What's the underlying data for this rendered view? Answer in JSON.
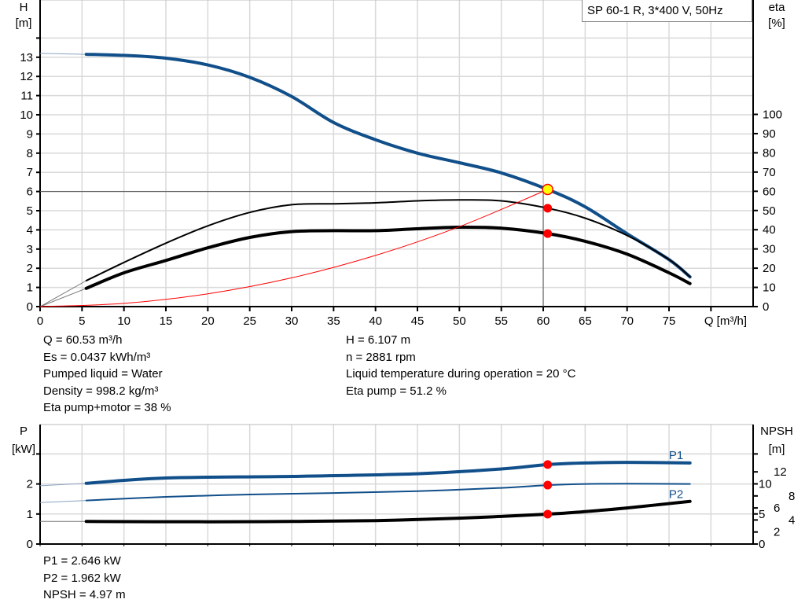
{
  "chart_data": [
    {
      "type": "line",
      "title": "SP 60-1 R, 3*400 V, 50Hz",
      "xlabel": "Q [m³/h]",
      "xlim": [
        0,
        80
      ],
      "xticks": [
        0,
        5,
        10,
        15,
        20,
        25,
        30,
        35,
        40,
        45,
        50,
        55,
        60,
        65,
        70,
        75
      ],
      "ylabel_left": [
        "H",
        "[m]"
      ],
      "ylim_left": [
        0,
        14
      ],
      "yticks_left": [
        0,
        1,
        2,
        3,
        4,
        5,
        6,
        7,
        8,
        9,
        10,
        11,
        12,
        13
      ],
      "ylabel_right": [
        "eta",
        "[%]"
      ],
      "ylim_right": [
        0,
        143
      ],
      "yticks_right": [
        0,
        10,
        20,
        30,
        40,
        50,
        60,
        70,
        80,
        90,
        100
      ],
      "grid": true,
      "duty_point": {
        "Q": 60,
        "H": 6
      },
      "series": [
        {
          "axis": "left",
          "color": "#114f8a",
          "width": "thick",
          "x": [
            0,
            5.5,
            10,
            15,
            20,
            25,
            30,
            35,
            40,
            45,
            50,
            55,
            60.53,
            65,
            70,
            75,
            77.5
          ],
          "y": [
            13.2,
            13.15,
            13.1,
            12.95,
            12.6,
            11.95,
            10.95,
            9.6,
            8.7,
            8.0,
            7.5,
            6.97,
            6.107,
            5.2,
            3.8,
            2.45,
            1.55
          ]
        },
        {
          "axis": "right",
          "color": "#000000",
          "width": "medium",
          "x": [
            0,
            5.5,
            10,
            15,
            20,
            25,
            30,
            35,
            40,
            45,
            50,
            55,
            60.53,
            65,
            70,
            75,
            77.5
          ],
          "y": [
            0,
            13.5,
            23,
            33,
            42,
            49,
            53,
            53.5,
            54,
            55,
            55.5,
            55,
            51.2,
            46,
            37,
            24.5,
            15.5
          ]
        },
        {
          "axis": "right",
          "color": "#000000",
          "width": "thick",
          "x": [
            0,
            5.5,
            10,
            15,
            20,
            25,
            30,
            35,
            40,
            45,
            50,
            55,
            60.53,
            65,
            70,
            75,
            77.5
          ],
          "y": [
            0,
            9.5,
            17.6,
            24,
            30.6,
            36,
            39,
            39.5,
            39.5,
            40.5,
            41.3,
            40.8,
            38,
            34,
            27.3,
            17.6,
            12
          ]
        },
        {
          "axis": "left",
          "color": "#ff0000",
          "width": "thin",
          "x": [
            0,
            10,
            20,
            30,
            40,
            50,
            60.53
          ],
          "y": [
            0,
            0.17,
            0.67,
            1.5,
            2.67,
            4.17,
            6.107
          ]
        }
      ],
      "operating_points": [
        {
          "x": 60.53,
          "y": 6.107,
          "axis": "left",
          "color": "#ffff00"
        },
        {
          "x": 60.53,
          "y": 51.2,
          "axis": "right",
          "color": "#ff0000"
        },
        {
          "x": 60.53,
          "y": 38,
          "axis": "right",
          "color": "#ff0000"
        }
      ]
    },
    {
      "type": "line",
      "xlim": [
        0,
        80
      ],
      "ylabel_left": [
        "P",
        "[kW]"
      ],
      "ylim_left": [
        0,
        3
      ],
      "yticks_left": [
        0,
        1,
        2
      ],
      "ylabel_right": [
        "NPSH",
        "[m]"
      ],
      "yticks_right": [
        0,
        2,
        4,
        5,
        6,
        8,
        10,
        12
      ],
      "grid": true,
      "series": [
        {
          "name": "P1",
          "axis": "left",
          "color": "#114f8a",
          "width": "thick",
          "x": [
            0,
            5.5,
            15,
            30,
            45,
            55,
            60.53,
            65,
            70,
            77.5
          ],
          "y": [
            1.94,
            2.02,
            2.2,
            2.25,
            2.34,
            2.5,
            2.646,
            2.7,
            2.72,
            2.7
          ]
        },
        {
          "name": "P2",
          "axis": "left",
          "color": "#114f8a",
          "width": "medium",
          "x": [
            0,
            5.5,
            15,
            25,
            35,
            45,
            55,
            60.53,
            65,
            70,
            77.5
          ],
          "y": [
            1.38,
            1.45,
            1.57,
            1.65,
            1.7,
            1.76,
            1.87,
            1.962,
            2.0,
            2.01,
            2.0
          ]
        },
        {
          "axis": "right",
          "color": "#000000",
          "width": "thick",
          "x": [
            0,
            5.5,
            20,
            30,
            40,
            50,
            60.53,
            65,
            70,
            77.5
          ],
          "y": [
            3.75,
            3.75,
            3.7,
            3.75,
            3.9,
            4.3,
            4.97,
            5.4,
            6.0,
            7.1
          ]
        }
      ],
      "operating_points": [
        {
          "x": 60.53,
          "y": 2.646,
          "axis": "left",
          "color": "#ff0000"
        },
        {
          "x": 60.53,
          "y": 1.962,
          "axis": "left",
          "color": "#ff0000"
        },
        {
          "x": 60.53,
          "y": 4.97,
          "axis": "right",
          "color": "#ff0000"
        }
      ]
    }
  ],
  "readouts_main": {
    "left": [
      "Q = 60.53 m³/h",
      "Es = 0.0437 kWh/m³",
      "Pumped liquid = Water",
      "Density = 998.2 kg/m³",
      "Eta pump+motor = 38 %"
    ],
    "right": [
      "H = 6.107 m",
      "n = 2881 rpm",
      "Liquid temperature during operation = 20 °C",
      "Eta pump = 51.2 %"
    ]
  },
  "readouts_power": [
    "P1 = 2.646 kW",
    "P2 = 1.962 kW",
    "NPSH = 4.97 m"
  ]
}
